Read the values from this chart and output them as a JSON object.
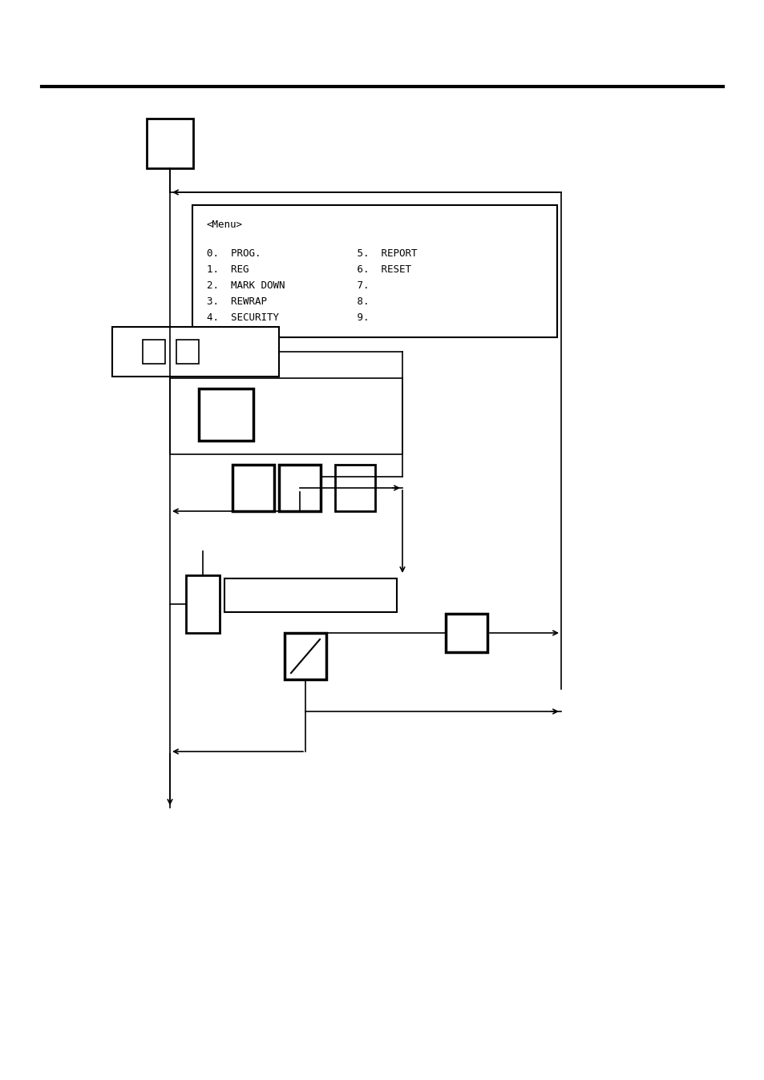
{
  "bg_color": "#ffffff",
  "line_color": "#000000",
  "menu_lines": [
    "<Menu>",
    "",
    "0.  PROG.                5.  REPORT",
    "1.  REG                  6.  RESET",
    "2.  MARK DOWN            7.",
    "3.  REWRAP               8.",
    "4.  SECURITY             9."
  ],
  "font_family": "monospace",
  "font_size": 9
}
